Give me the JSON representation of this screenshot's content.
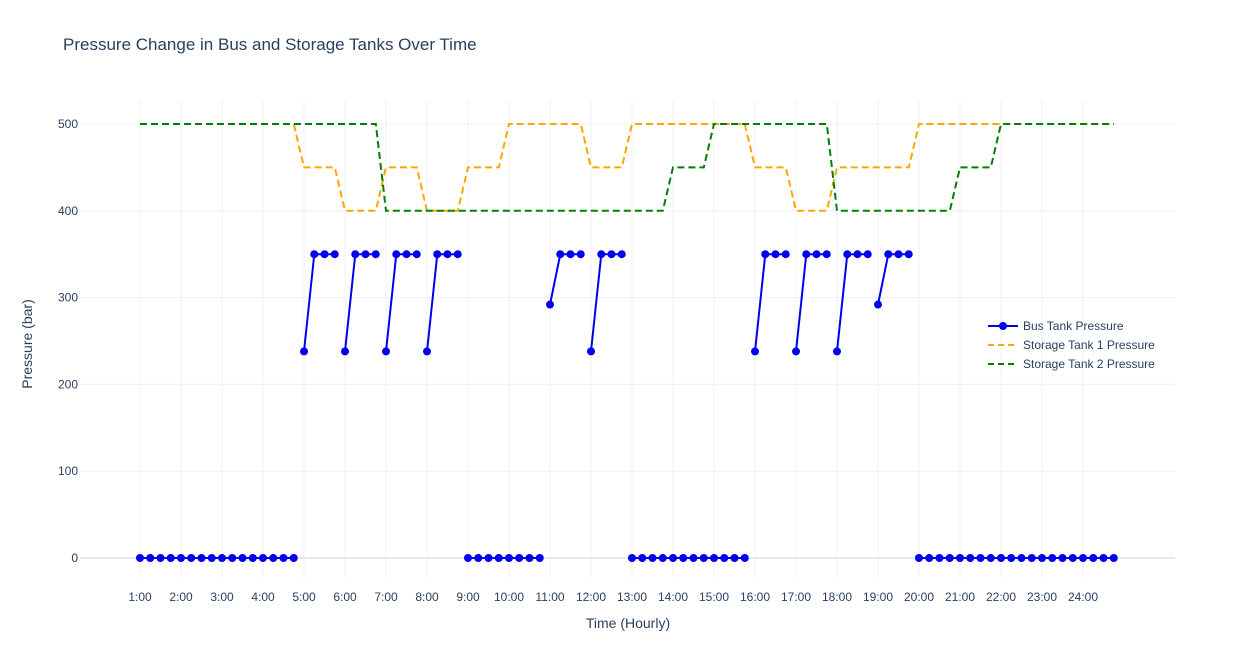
{
  "chart_data": {
    "type": "line",
    "title": "Pressure Change in Bus and Storage Tanks Over Time",
    "xlabel": "Time (Hourly)",
    "ylabel": "Pressure (bar)",
    "x_tick_labels": [
      "1:00",
      "2:00",
      "3:00",
      "4:00",
      "5:00",
      "6:00",
      "7:00",
      "8:00",
      "9:00",
      "10:00",
      "11:00",
      "12:00",
      "13:00",
      "14:00",
      "15:00",
      "16:00",
      "17:00",
      "18:00",
      "19:00",
      "20:00",
      "21:00",
      "22:00",
      "23:00",
      "24:00"
    ],
    "x_tick_hours": [
      1,
      2,
      3,
      4,
      5,
      6,
      7,
      8,
      9,
      10,
      11,
      12,
      13,
      14,
      15,
      16,
      17,
      18,
      19,
      20,
      21,
      22,
      23,
      24
    ],
    "xlim": [
      1,
      24.75
    ],
    "ylim": [
      -30,
      530
    ],
    "y_ticks": [
      0,
      100,
      200,
      300,
      400,
      500
    ],
    "grid": true,
    "legend_position": "right",
    "series": [
      {
        "name": "Bus Tank Pressure",
        "color": "#0000ee",
        "style": "lines+markers",
        "x": [
          1,
          1.25,
          1.5,
          1.75,
          2,
          2.25,
          2.5,
          2.75,
          3,
          3.25,
          3.5,
          3.75,
          4,
          4.25,
          4.5,
          4.75,
          5,
          5.25,
          5.5,
          5.75,
          6,
          6.25,
          6.5,
          6.75,
          7,
          7.25,
          7.5,
          7.75,
          8,
          8.25,
          8.5,
          8.75,
          9,
          9.25,
          9.5,
          9.75,
          10,
          10.25,
          10.5,
          10.75,
          11,
          11.25,
          11.5,
          11.75,
          12,
          12.25,
          12.5,
          12.75,
          13,
          13.25,
          13.5,
          13.75,
          14,
          14.25,
          14.5,
          14.75,
          15,
          15.25,
          15.5,
          15.75,
          16,
          16.25,
          16.5,
          16.75,
          17,
          17.25,
          17.5,
          17.75,
          18,
          18.25,
          18.5,
          18.75,
          19,
          19.25,
          19.5,
          19.75,
          20,
          20.25,
          20.5,
          20.75,
          21,
          21.25,
          21.5,
          21.75,
          22,
          22.25,
          22.5,
          22.75,
          23,
          23.25,
          23.5,
          23.75,
          24,
          24.25,
          24.5,
          24.75
        ],
        "y": [
          0,
          0,
          0,
          0,
          0,
          0,
          0,
          0,
          0,
          0,
          0,
          0,
          0,
          0,
          0,
          0,
          238,
          350,
          350,
          350,
          238,
          350,
          350,
          350,
          238,
          350,
          350,
          350,
          238,
          350,
          350,
          350,
          0,
          0,
          0,
          0,
          0,
          0,
          0,
          0,
          292,
          350,
          350,
          350,
          238,
          350,
          350,
          350,
          0,
          0,
          0,
          0,
          0,
          0,
          0,
          0,
          0,
          0,
          0,
          0,
          238,
          350,
          350,
          350,
          238,
          350,
          350,
          350,
          238,
          350,
          350,
          350,
          292,
          350,
          350,
          350,
          0,
          0,
          0,
          0,
          0,
          0,
          0,
          0,
          0,
          0,
          0,
          0,
          0,
          0,
          0,
          0,
          0,
          0,
          0,
          0
        ],
        "breaks_after": [
          4.75,
          5.75,
          6.75,
          7.75,
          8.75,
          10.75,
          11.75,
          12.75,
          15.75,
          16.75,
          17.75,
          18.75,
          19.75
        ]
      },
      {
        "name": "Storage Tank 1 Pressure",
        "color": "#ffa500",
        "style": "dash",
        "x": [
          1,
          4.75,
          5,
          5.75,
          6,
          6.75,
          7,
          7.75,
          8,
          8.75,
          9,
          9.75,
          10,
          11.75,
          12,
          12.75,
          13,
          15.75,
          16,
          16.75,
          17,
          17.75,
          18,
          19.75,
          20,
          24.75
        ],
        "y": [
          500,
          500,
          450,
          450,
          400,
          400,
          450,
          450,
          400,
          400,
          450,
          450,
          500,
          500,
          450,
          450,
          500,
          500,
          450,
          450,
          400,
          400,
          450,
          450,
          500,
          500
        ]
      },
      {
        "name": "Storage Tank 2 Pressure",
        "color": "#008000",
        "style": "dash",
        "x": [
          1,
          6.75,
          7,
          13.75,
          14,
          14.75,
          15,
          17.75,
          18,
          20.75,
          21,
          21.75,
          22,
          24.75
        ],
        "y": [
          500,
          500,
          400,
          400,
          450,
          450,
          500,
          500,
          400,
          400,
          450,
          450,
          500,
          500
        ]
      }
    ]
  }
}
